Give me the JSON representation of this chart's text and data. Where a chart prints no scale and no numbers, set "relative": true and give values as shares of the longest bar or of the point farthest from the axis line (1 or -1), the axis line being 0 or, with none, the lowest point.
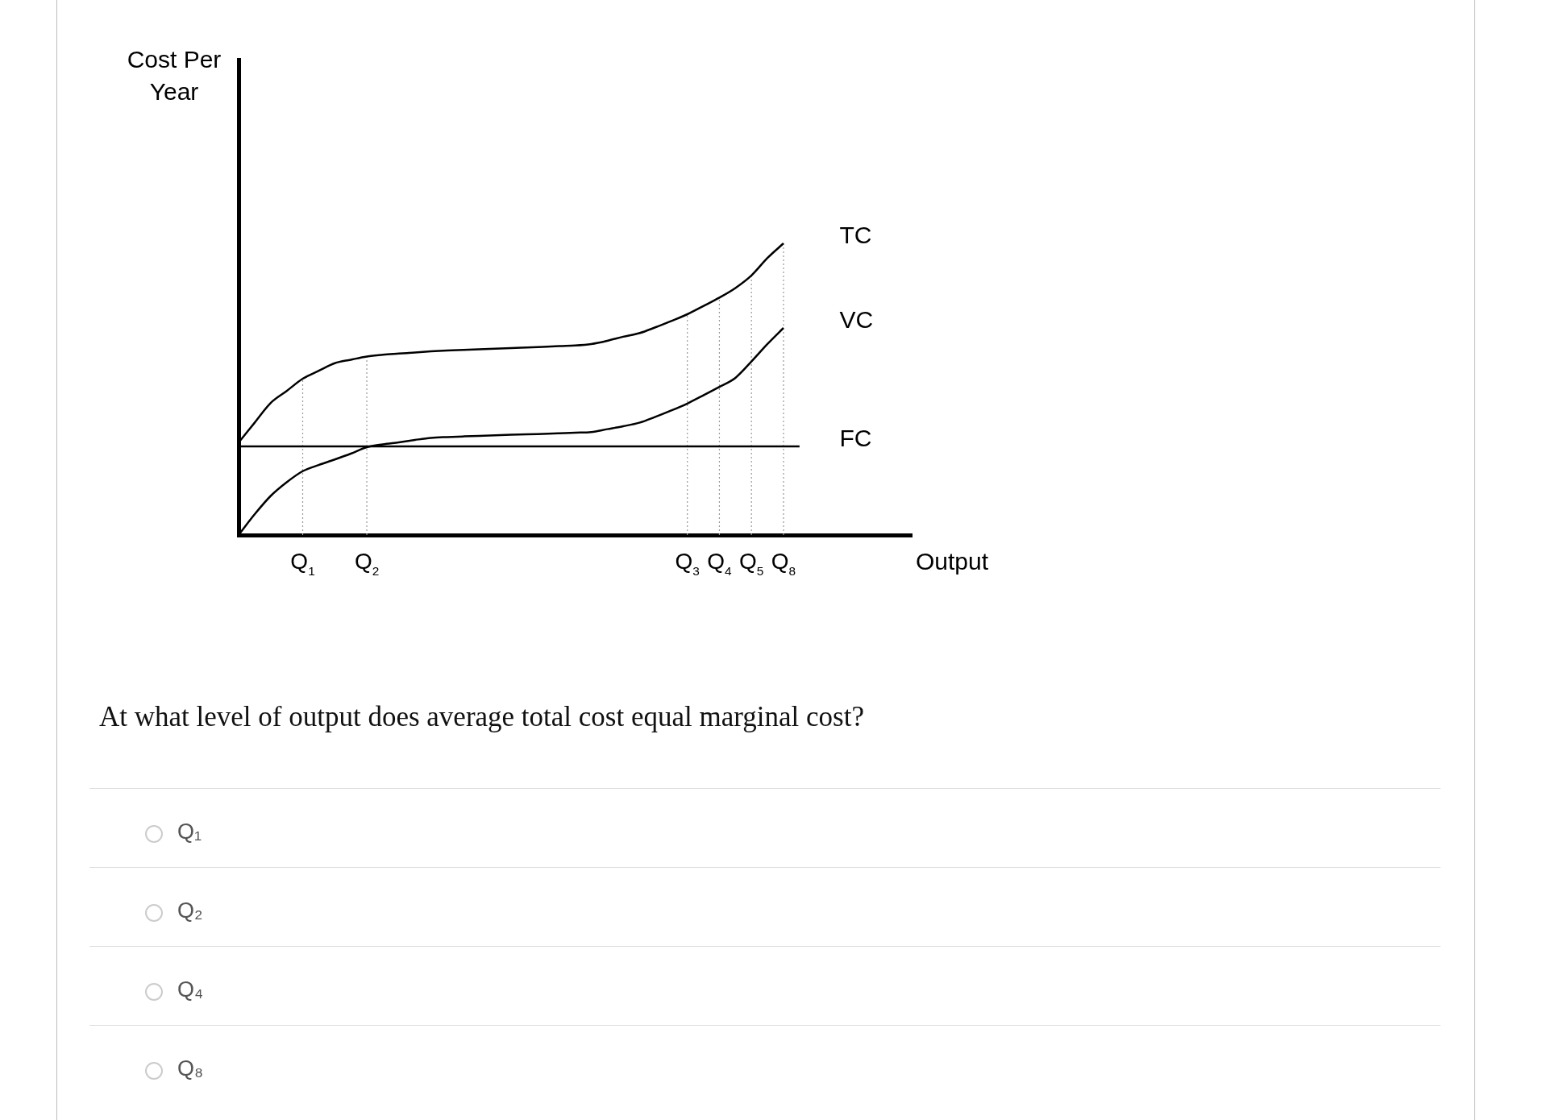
{
  "chart_data": {
    "type": "line",
    "relative": true,
    "xlabel": "Output",
    "categories": [
      null,
      null,
      null,
      null,
      "Q$_{1}$",
      null,
      null,
      null,
      "Q$_{2}$",
      null,
      null,
      null,
      null,
      null,
      null,
      null,
      null,
      null,
      null,
      null,
      null,
      null,
      null,
      null,
      null,
      null,
      null,
      null,
      "Q$_{3}$",
      null,
      "Q$_{4}$",
      null,
      "Q$_{5}$",
      null,
      "Q$_{8}$",
      null,
      null,
      null,
      null,
      null,
      null,
      null,
      null
    ],
    "series": [
      {
        "name": "TC",
        "color": "#000000",
        "values": [
          0.317,
          0.385,
          0.453,
          0.494,
          0.536,
          0.563,
          0.589,
          0.601,
          0.612,
          0.618,
          0.622,
          0.626,
          0.63,
          0.633,
          0.635,
          0.637,
          0.639,
          0.641,
          0.643,
          0.645,
          0.648,
          0.65,
          0.655,
          0.666,
          0.68,
          0.692,
          0.712,
          0.734,
          0.757,
          0.785,
          0.814,
          0.847,
          0.89,
          0.95,
          1,
          null,
          null,
          null,
          null,
          null,
          null,
          null,
          null
        ]
      },
      {
        "name": "VC",
        "color": "#000000",
        "values": [
          0,
          0.071,
          0.134,
          0.181,
          0.219,
          0.24,
          0.259,
          0.279,
          0.301,
          0.311,
          0.318,
          0.326,
          0.333,
          0.336,
          0.338,
          0.34,
          0.342,
          0.344,
          0.345,
          0.347,
          0.349,
          0.351,
          0.353,
          0.363,
          0.373,
          0.385,
          0.405,
          0.427,
          0.451,
          0.479,
          0.508,
          0.539,
          0.595,
          0.655,
          0.71,
          null,
          null,
          null,
          null,
          null,
          null,
          null,
          null
        ]
      },
      {
        "name": "FC",
        "color": "#000000",
        "values": [
          0.304,
          0.304,
          0.304,
          0.304,
          0.304,
          0.304,
          0.304,
          0.304,
          0.304,
          0.304,
          0.304,
          0.304,
          0.304,
          0.304,
          0.304,
          0.304,
          0.304,
          0.304,
          0.304,
          0.304,
          0.304,
          0.304,
          0.304,
          0.304,
          0.304,
          0.304,
          0.304,
          0.304,
          0.304,
          0.304,
          0.304,
          0.304,
          0.304,
          0.304,
          0.304,
          0.304,
          null,
          null,
          null,
          null,
          null,
          null,
          null
        ]
      }
    ],
    "ref_lines": [
      {
        "axis": "x",
        "value": "Q$_{1}$",
        "line_style": "dotted",
        "color": "#999999"
      },
      {
        "axis": "x",
        "value": "Q$_{2}$",
        "line_style": "dotted",
        "color": "#999999"
      },
      {
        "axis": "x",
        "value": "Q$_{3}$",
        "line_style": "dotted",
        "color": "#999999"
      },
      {
        "axis": "x",
        "value": "Q$_{4}$",
        "line_style": "dotted",
        "color": "#999999"
      },
      {
        "axis": "x",
        "value": "Q$_{5}$",
        "line_style": "dotted",
        "color": "#999999"
      },
      {
        "axis": "x",
        "value": "Q$_{8}$",
        "line_style": "dotted",
        "color": "#999999"
      }
    ],
    "grid": false,
    "legend": false,
    "marker": "none",
    "line_style": "solid",
    "annotations": [
      "Cost Per Year",
      "At what level of output does average total cost equal marginal cost?",
      "Q₁",
      "Q₂",
      "Q₄",
      "Q₈"
    ]
  }
}
